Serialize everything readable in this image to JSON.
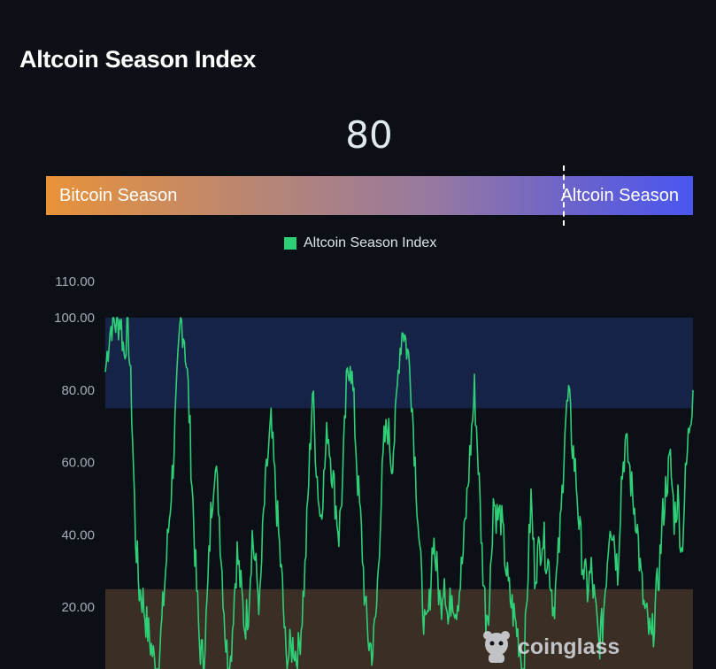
{
  "page": {
    "title": "Altcoin Season Index"
  },
  "gauge": {
    "value": "80",
    "left_label": "Bitcoin Season",
    "right_label": "Altcoin Season",
    "value_numeric": 80
  },
  "legend": {
    "label": "Altcoin Season Index",
    "color": "#2fcf78"
  },
  "watermark": {
    "text": "coinglass"
  },
  "chart_data": {
    "type": "line",
    "title": "Altcoin Season Index",
    "xlabel": "",
    "ylabel": "",
    "ylim": [
      0,
      110
    ],
    "y_ticks": [
      "110.00",
      "100.00",
      "80.00",
      "60.00",
      "40.00",
      "20.00"
    ],
    "y_tick_values": [
      110,
      100,
      80,
      60,
      40,
      20
    ],
    "bands": [
      {
        "from": 75,
        "to": 100,
        "color": "#172247",
        "meaning": "altcoin season zone"
      },
      {
        "from": 0,
        "to": 25,
        "color": "#3a2e25",
        "meaning": "bitcoin season zone"
      }
    ],
    "line_color": "#2fcf78",
    "grid": false,
    "legend_position": "top-center",
    "series": [
      {
        "name": "Altcoin Season Index",
        "values": [
          85,
          95,
          100,
          98,
          100,
          90,
          100,
          75,
          40,
          25,
          22,
          15,
          10,
          5,
          3,
          15,
          30,
          45,
          60,
          80,
          100,
          95,
          80,
          55,
          30,
          10,
          5,
          20,
          45,
          60,
          50,
          30,
          10,
          0,
          20,
          35,
          25,
          15,
          20,
          40,
          30,
          20,
          45,
          60,
          70,
          55,
          40,
          25,
          5,
          8,
          10,
          5,
          15,
          30,
          55,
          80,
          60,
          45,
          55,
          70,
          60,
          50,
          40,
          55,
          80,
          90,
          75,
          55,
          40,
          20,
          10,
          8,
          20,
          45,
          65,
          70,
          60,
          70,
          90,
          98,
          92,
          85,
          65,
          45,
          25,
          12,
          20,
          40,
          30,
          20,
          30,
          15,
          25,
          20,
          25,
          35,
          50,
          65,
          80,
          60,
          35,
          18,
          22,
          50,
          45,
          45,
          35,
          25,
          20,
          15,
          10,
          0,
          25,
          50,
          30,
          35,
          40,
          35,
          30,
          20,
          30,
          45,
          70,
          78,
          65,
          55,
          40,
          30,
          25,
          30,
          20,
          10,
          15,
          30,
          45,
          40,
          30,
          55,
          65,
          60,
          50,
          45,
          30,
          20,
          15,
          10,
          20,
          30,
          45,
          55,
          60,
          45,
          50,
          35,
          55,
          70,
          80
        ]
      }
    ]
  }
}
